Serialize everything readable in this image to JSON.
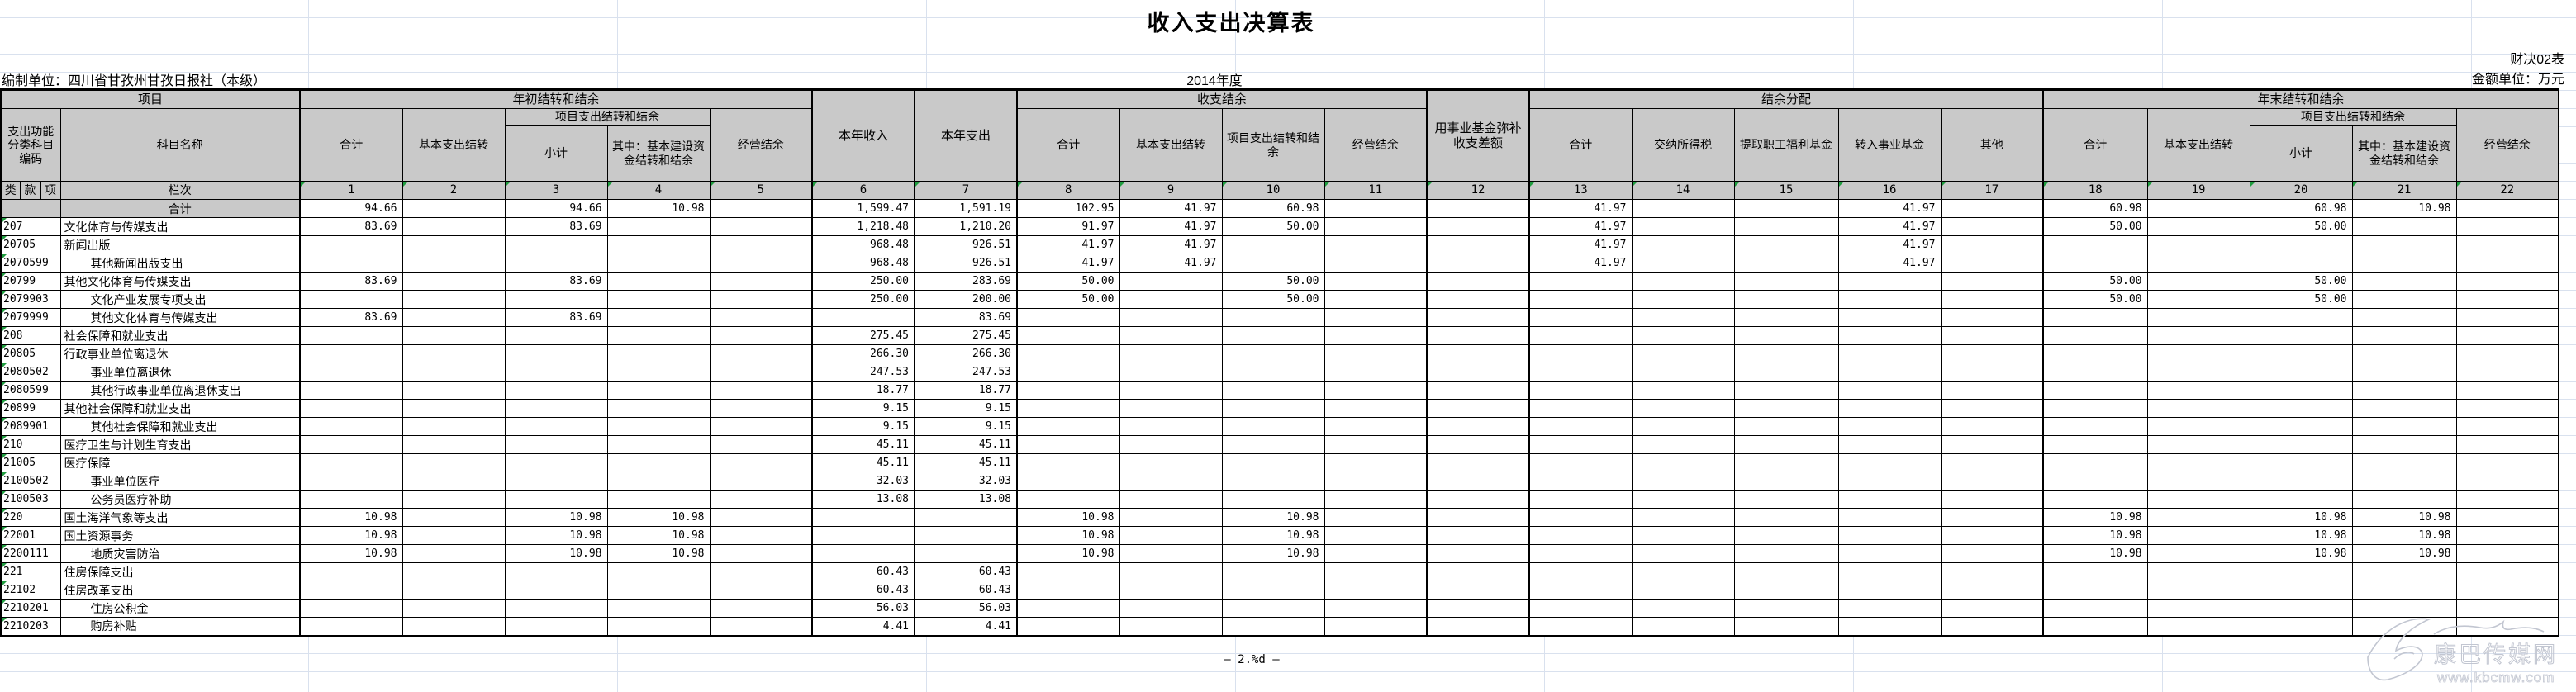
{
  "page": {
    "title": "收入支出决算表",
    "form_no": "财决02表",
    "prepared_by": "编制单位：四川省甘孜州甘孜日报社（本级）",
    "year": "2014年度",
    "amount_unit": "金额单位：万元",
    "footer": "—  2.%d  —",
    "watermark": {
      "name": "康巴传媒网",
      "site": "www.kbcmw.com"
    }
  },
  "table": {
    "header": {
      "project": "项目",
      "code_title": "支出功能分类科目编码",
      "code_sub": [
        "类",
        "款",
        "项"
      ],
      "subject_name": "科目名称",
      "lanci": "栏次",
      "begin_year": {
        "title": "年初结转和结余",
        "total": "合计",
        "basic": "基本支出结转",
        "project_group": "项目支出结转和结余",
        "subtotal": "小计",
        "capital": "其中：基本建设资金结转和结余",
        "operating": "经营结余"
      },
      "income": "本年收入",
      "expense": "本年支出",
      "balance": {
        "title": "收支结余",
        "total": "合计",
        "basic": "基本支出结转",
        "project": "项目支出结转和结余",
        "operating": "经营结余"
      },
      "fund_makeup": "用事业基金弥补收支差额",
      "distribution": {
        "title": "结余分配",
        "total": "合计",
        "income_tax": "交纳所得税",
        "welfare_fund": "提取职工福利基金",
        "to_career_fund": "转入事业基金",
        "other": "其他"
      },
      "end_year": {
        "title": "年末结转和结余",
        "total": "合计",
        "basic": "基本支出结转",
        "project_group": "项目支出结转和结余",
        "subtotal": "小计",
        "capital": "其中：基本建设资金结转和结余",
        "operating": "经营结余"
      }
    },
    "column_numbers": [
      "1",
      "2",
      "3",
      "4",
      "5",
      "6",
      "7",
      "8",
      "9",
      "10",
      "11",
      "12",
      "13",
      "14",
      "15",
      "16",
      "17",
      "18",
      "19",
      "20",
      "21",
      "22"
    ],
    "rows": [
      {
        "code": "",
        "name": "合计",
        "sum": true,
        "indent": 0,
        "v": {
          "1": "94.66",
          "3": "94.66",
          "4": "10.98",
          "6": "1,599.47",
          "7": "1,591.19",
          "8": "102.95",
          "9": "41.97",
          "10": "60.98",
          "13": "41.97",
          "16": "41.97",
          "18": "60.98",
          "20": "60.98",
          "21": "10.98"
        }
      },
      {
        "code": "207",
        "name": "文化体育与传媒支出",
        "indent": 0,
        "v": {
          "1": "83.69",
          "3": "83.69",
          "6": "1,218.48",
          "7": "1,210.20",
          "8": "91.97",
          "9": "41.97",
          "10": "50.00",
          "13": "41.97",
          "16": "41.97",
          "18": "50.00",
          "20": "50.00"
        }
      },
      {
        "code": "20705",
        "name": "新闻出版",
        "indent": 0,
        "v": {
          "6": "968.48",
          "7": "926.51",
          "8": "41.97",
          "9": "41.97",
          "13": "41.97",
          "16": "41.97"
        }
      },
      {
        "code": "2070599",
        "name": "其他新闻出版支出",
        "indent": 1,
        "v": {
          "6": "968.48",
          "7": "926.51",
          "8": "41.97",
          "9": "41.97",
          "13": "41.97",
          "16": "41.97"
        }
      },
      {
        "code": "20799",
        "name": "其他文化体育与传媒支出",
        "indent": 0,
        "v": {
          "1": "83.69",
          "3": "83.69",
          "6": "250.00",
          "7": "283.69",
          "8": "50.00",
          "10": "50.00",
          "18": "50.00",
          "20": "50.00"
        }
      },
      {
        "code": "2079903",
        "name": "文化产业发展专项支出",
        "indent": 1,
        "v": {
          "6": "250.00",
          "7": "200.00",
          "8": "50.00",
          "10": "50.00",
          "18": "50.00",
          "20": "50.00"
        }
      },
      {
        "code": "2079999",
        "name": "其他文化体育与传媒支出",
        "indent": 1,
        "v": {
          "1": "83.69",
          "3": "83.69",
          "7": "83.69"
        }
      },
      {
        "code": "208",
        "name": "社会保障和就业支出",
        "indent": 0,
        "v": {
          "6": "275.45",
          "7": "275.45"
        }
      },
      {
        "code": "20805",
        "name": "行政事业单位离退休",
        "indent": 0,
        "v": {
          "6": "266.30",
          "7": "266.30"
        }
      },
      {
        "code": "2080502",
        "name": "事业单位离退休",
        "indent": 1,
        "v": {
          "6": "247.53",
          "7": "247.53"
        }
      },
      {
        "code": "2080599",
        "name": "其他行政事业单位离退休支出",
        "indent": 1,
        "v": {
          "6": "18.77",
          "7": "18.77"
        }
      },
      {
        "code": "20899",
        "name": "其他社会保障和就业支出",
        "indent": 0,
        "v": {
          "6": "9.15",
          "7": "9.15"
        }
      },
      {
        "code": "2089901",
        "name": "其他社会保障和就业支出",
        "indent": 1,
        "v": {
          "6": "9.15",
          "7": "9.15"
        }
      },
      {
        "code": "210",
        "name": "医疗卫生与计划生育支出",
        "indent": 0,
        "v": {
          "6": "45.11",
          "7": "45.11"
        }
      },
      {
        "code": "21005",
        "name": "医疗保障",
        "indent": 0,
        "v": {
          "6": "45.11",
          "7": "45.11"
        }
      },
      {
        "code": "2100502",
        "name": "事业单位医疗",
        "indent": 1,
        "v": {
          "6": "32.03",
          "7": "32.03"
        }
      },
      {
        "code": "2100503",
        "name": "公务员医疗补助",
        "indent": 1,
        "v": {
          "6": "13.08",
          "7": "13.08"
        }
      },
      {
        "code": "220",
        "name": "国土海洋气象等支出",
        "indent": 0,
        "v": {
          "1": "10.98",
          "3": "10.98",
          "4": "10.98",
          "8": "10.98",
          "10": "10.98",
          "18": "10.98",
          "20": "10.98",
          "21": "10.98"
        }
      },
      {
        "code": "22001",
        "name": "国土资源事务",
        "indent": 0,
        "v": {
          "1": "10.98",
          "3": "10.98",
          "4": "10.98",
          "8": "10.98",
          "10": "10.98",
          "18": "10.98",
          "20": "10.98",
          "21": "10.98"
        }
      },
      {
        "code": "2200111",
        "name": "地质灾害防治",
        "indent": 1,
        "v": {
          "1": "10.98",
          "3": "10.98",
          "4": "10.98",
          "8": "10.98",
          "10": "10.98",
          "18": "10.98",
          "20": "10.98",
          "21": "10.98"
        }
      },
      {
        "code": "221",
        "name": "住房保障支出",
        "indent": 0,
        "v": {
          "6": "60.43",
          "7": "60.43"
        }
      },
      {
        "code": "22102",
        "name": "住房改革支出",
        "indent": 0,
        "v": {
          "6": "60.43",
          "7": "60.43"
        }
      },
      {
        "code": "2210201",
        "name": "住房公积金",
        "indent": 1,
        "v": {
          "6": "56.03",
          "7": "56.03"
        }
      },
      {
        "code": "2210203",
        "name": "购房补贴",
        "indent": 1,
        "v": {
          "6": "4.41",
          "7": "4.41"
        }
      }
    ]
  }
}
